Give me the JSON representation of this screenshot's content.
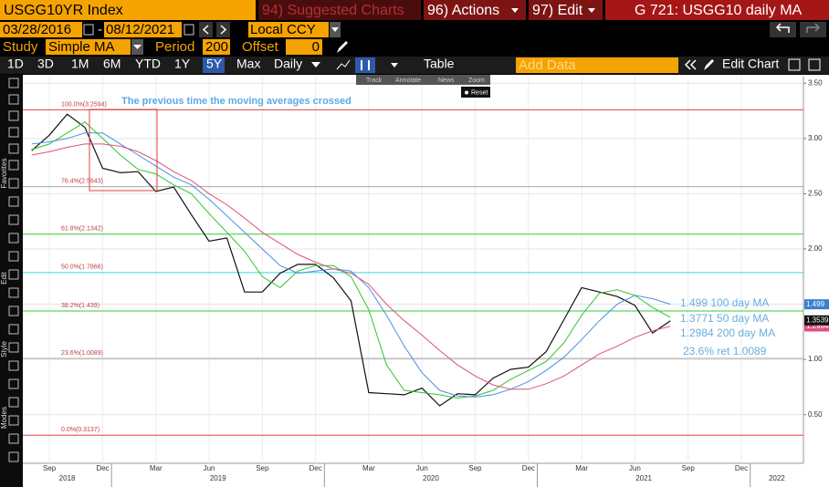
{
  "toolbar": {
    "security": "USGG10YR Index",
    "suggested": "94) Suggested Charts",
    "actions": "96) Actions",
    "edit": "97) Edit",
    "title": "G 721: USGG10 daily MA"
  },
  "dates": {
    "start": "03/28/2016",
    "sep": "-",
    "end": "08/12/2021",
    "currency": "Local CCY"
  },
  "study": {
    "label": "Study",
    "name": "Simple MA",
    "period_label": "Period",
    "period": 200,
    "offset_label": "Offset",
    "offset": 0
  },
  "ranges": [
    "1D",
    "3D",
    "1M",
    "6M",
    "YTD",
    "1Y",
    "5Y",
    "Max"
  ],
  "frequency": "Daily",
  "table": "Table",
  "add_data": "Add Data",
  "edit_chart": "Edit Chart",
  "chart_tools": [
    "Track",
    "Annotate",
    "News",
    "Zoom"
  ],
  "reset": "Reset",
  "side_labels": [
    "Favorites",
    "Edit",
    "Style",
    "Modes"
  ],
  "chart_data": {
    "type": "line",
    "annotation": "The previous time the moving averages crossed",
    "x": [
      "2018-08",
      "2018-09",
      "2018-10",
      "2018-11",
      "2018-12",
      "2019-01",
      "2019-02",
      "2019-03",
      "2019-04",
      "2019-05",
      "2019-06",
      "2019-07",
      "2019-08",
      "2019-09",
      "2019-10",
      "2019-11",
      "2019-12",
      "2020-01",
      "2020-02",
      "2020-03",
      "2020-04",
      "2020-05",
      "2020-06",
      "2020-07",
      "2020-08",
      "2020-09",
      "2020-10",
      "2020-11",
      "2020-12",
      "2021-01",
      "2021-02",
      "2021-03",
      "2021-04",
      "2021-05",
      "2021-06",
      "2021-07",
      "2021-08"
    ],
    "series": [
      {
        "color": "#111111",
        "values": [
          2.89,
          3.03,
          3.22,
          3.1,
          2.73,
          2.69,
          2.7,
          2.52,
          2.56,
          2.31,
          2.07,
          2.1,
          1.61,
          1.61,
          1.78,
          1.86,
          1.86,
          1.74,
          1.53,
          0.7,
          0.69,
          0.68,
          0.74,
          0.58,
          0.69,
          0.68,
          0.83,
          0.91,
          0.93,
          1.07,
          1.36,
          1.65,
          1.61,
          1.57,
          1.49,
          1.24,
          1.35
        ]
      },
      {
        "color": "#2fc42f",
        "values": [
          2.9,
          2.95,
          3.05,
          3.15,
          3.0,
          2.85,
          2.72,
          2.68,
          2.58,
          2.5,
          2.32,
          2.15,
          1.98,
          1.75,
          1.65,
          1.8,
          1.85,
          1.85,
          1.75,
          1.45,
          0.95,
          0.72,
          0.7,
          0.68,
          0.65,
          0.67,
          0.72,
          0.82,
          0.9,
          0.98,
          1.15,
          1.4,
          1.6,
          1.63,
          1.58,
          1.47,
          1.38
        ]
      },
      {
        "color": "#4a90e2",
        "values": [
          2.95,
          2.97,
          3.0,
          3.05,
          3.05,
          2.95,
          2.85,
          2.75,
          2.65,
          2.58,
          2.45,
          2.3,
          2.15,
          2.0,
          1.85,
          1.78,
          1.8,
          1.82,
          1.8,
          1.65,
          1.4,
          1.12,
          0.88,
          0.72,
          0.67,
          0.66,
          0.68,
          0.73,
          0.8,
          0.9,
          1.02,
          1.18,
          1.35,
          1.5,
          1.58,
          1.55,
          1.5
        ]
      },
      {
        "color": "#e0507a",
        "values": [
          2.85,
          2.88,
          2.92,
          2.95,
          2.95,
          2.93,
          2.88,
          2.8,
          2.7,
          2.62,
          2.5,
          2.4,
          2.28,
          2.15,
          2.05,
          1.95,
          1.88,
          1.82,
          1.78,
          1.68,
          1.5,
          1.35,
          1.22,
          1.08,
          0.95,
          0.85,
          0.77,
          0.73,
          0.73,
          0.78,
          0.85,
          0.95,
          1.05,
          1.12,
          1.2,
          1.26,
          1.3
        ]
      }
    ],
    "fib_levels": [
      {
        "label": "100.0%(3.2594)",
        "value": 3.2594,
        "color": "#e04040"
      },
      {
        "label": "76.4%(2.5643)",
        "value": 2.5643,
        "color": "#aaaaaa"
      },
      {
        "label": "61.8%(2.1342)",
        "value": 2.1342,
        "color": "#33cc33"
      },
      {
        "label": "50.0%(1.7866)",
        "value": 1.7866,
        "color": "#33d6e0"
      },
      {
        "label": "38.2%(1.439)",
        "value": 1.439,
        "color": "#33cc33"
      },
      {
        "label": "23.6%(1.0089)",
        "value": 1.0089,
        "color": "#aaaaaa"
      },
      {
        "label": "0.0%(0.3137)",
        "value": 0.3137,
        "color": "#e04040"
      }
    ],
    "ma_labels": [
      "1.499 100 day MA",
      "1.3771 50 day MA",
      "1.2984 200 day MA",
      "23.6% ret 1.0089"
    ],
    "last_value_tags": [
      {
        "value": 1.2984,
        "label": "1.2984",
        "color": "#e0507a"
      },
      {
        "value": 1.499,
        "label": "1.499",
        "color": "#3b7fd0"
      },
      {
        "value": 1.3539,
        "label": "1.3539",
        "color": "#111111"
      }
    ],
    "xlim": [
      "2018-08",
      "2022-04"
    ],
    "xticks": [
      {
        "value": "2018-09",
        "label": "Sep"
      },
      {
        "value": "2018-12",
        "label": "Dec"
      },
      {
        "value": "2019-03",
        "label": "Mar"
      },
      {
        "value": "2019-06",
        "label": "Jun"
      },
      {
        "value": "2019-09",
        "label": "Sep"
      },
      {
        "value": "2019-12",
        "label": "Dec"
      },
      {
        "value": "2020-03",
        "label": "Mar"
      },
      {
        "value": "2020-06",
        "label": "Jun"
      },
      {
        "value": "2020-09",
        "label": "Sep"
      },
      {
        "value": "2020-12",
        "label": "Dec"
      },
      {
        "value": "2021-03",
        "label": "Mar"
      },
      {
        "value": "2021-06",
        "label": "Jun"
      },
      {
        "value": "2021-09",
        "label": "Sep"
      },
      {
        "value": "2021-12",
        "label": "Dec"
      }
    ],
    "years": [
      "2018",
      "2019",
      "2020",
      "2021",
      "2022"
    ],
    "ylim": [
      0.06,
      3.56
    ],
    "yticks": [
      {
        "value": 0.5,
        "label": "0.50"
      },
      {
        "value": 1,
        "label": "1.00"
      },
      {
        "value": 1.5,
        "label": "1.50"
      },
      {
        "value": 2,
        "label": "2.00"
      },
      {
        "value": 2.5,
        "label": "2.50"
      },
      {
        "value": 3,
        "label": "3.00"
      },
      {
        "value": 3.5,
        "label": "3.50"
      }
    ],
    "grid": true
  }
}
